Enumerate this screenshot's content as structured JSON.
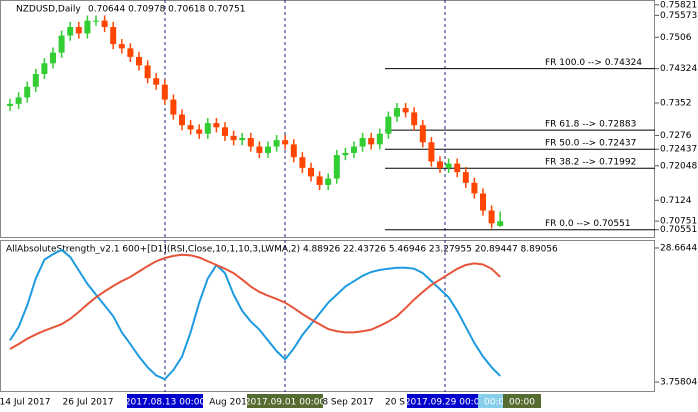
{
  "chart_data": [
    {
      "type": "candlestick",
      "title": "NZDUSD,Daily",
      "header_values": "0.70644 0.70978 0.70618 0.70751",
      "up_color": "#32cd32",
      "down_color": "#ff4500",
      "open": [
        0.7345,
        0.735,
        0.7365,
        0.739,
        0.742,
        0.7445,
        0.747,
        0.751,
        0.753,
        0.7515,
        0.7545,
        0.7545,
        0.753,
        0.749,
        0.748,
        0.746,
        0.744,
        0.741,
        0.7395,
        0.736,
        0.7325,
        0.73,
        0.729,
        0.728,
        0.7305,
        0.7295,
        0.7275,
        0.7265,
        0.727,
        0.725,
        0.7235,
        0.725,
        0.7265,
        0.7255,
        0.7225,
        0.72,
        0.718,
        0.716,
        0.7175,
        0.723,
        0.7235,
        0.725,
        0.727,
        0.7255,
        0.728,
        0.732,
        0.734,
        0.733,
        0.73,
        0.726,
        0.7215,
        0.72,
        0.721,
        0.719,
        0.7165,
        0.714,
        0.71,
        0.7064
      ],
      "high": [
        0.7362,
        0.7377,
        0.7402,
        0.7432,
        0.7457,
        0.7482,
        0.7522,
        0.7542,
        0.7542,
        0.7557,
        0.7557,
        0.7557,
        0.7542,
        0.7502,
        0.7492,
        0.7472,
        0.7452,
        0.7422,
        0.7407,
        0.7372,
        0.7337,
        0.7312,
        0.7302,
        0.7317,
        0.7317,
        0.7307,
        0.7287,
        0.7282,
        0.7282,
        0.7262,
        0.7262,
        0.7277,
        0.7277,
        0.7267,
        0.7237,
        0.7212,
        0.7192,
        0.7187,
        0.7242,
        0.7247,
        0.7262,
        0.7282,
        0.7282,
        0.7292,
        0.7332,
        0.7352,
        0.7352,
        0.7342,
        0.7312,
        0.7272,
        0.7227,
        0.7222,
        0.7222,
        0.7202,
        0.7177,
        0.7152,
        0.7112,
        0.7098
      ],
      "low": [
        0.7333,
        0.7338,
        0.7353,
        0.7378,
        0.7408,
        0.7433,
        0.7458,
        0.7498,
        0.7503,
        0.7503,
        0.7533,
        0.7518,
        0.7478,
        0.7468,
        0.7448,
        0.7428,
        0.7398,
        0.7383,
        0.7348,
        0.7313,
        0.7288,
        0.7278,
        0.7268,
        0.7268,
        0.7283,
        0.7263,
        0.7253,
        0.7253,
        0.7238,
        0.7223,
        0.7223,
        0.7238,
        0.7243,
        0.7213,
        0.7188,
        0.7168,
        0.7148,
        0.7148,
        0.7163,
        0.7218,
        0.7223,
        0.7238,
        0.7243,
        0.7243,
        0.7268,
        0.7308,
        0.7318,
        0.7288,
        0.7248,
        0.7203,
        0.7188,
        0.7188,
        0.7178,
        0.7153,
        0.7128,
        0.7088,
        0.7058,
        0.7062
      ],
      "close": [
        0.735,
        0.7365,
        0.739,
        0.742,
        0.7445,
        0.747,
        0.751,
        0.753,
        0.7515,
        0.7545,
        0.7545,
        0.753,
        0.749,
        0.748,
        0.746,
        0.744,
        0.741,
        0.7395,
        0.736,
        0.7325,
        0.73,
        0.729,
        0.728,
        0.7305,
        0.7295,
        0.7275,
        0.7265,
        0.727,
        0.725,
        0.7235,
        0.725,
        0.7265,
        0.7255,
        0.7225,
        0.72,
        0.718,
        0.716,
        0.7175,
        0.723,
        0.7235,
        0.725,
        0.727,
        0.7255,
        0.728,
        0.732,
        0.734,
        0.733,
        0.73,
        0.726,
        0.7215,
        0.72,
        0.721,
        0.719,
        0.7165,
        0.714,
        0.71,
        0.707,
        0.7075
      ],
      "ylim": [
        0.7038,
        0.7591
      ],
      "yticks": [
        0.75821,
        0.75573,
        0.7506,
        0.74324,
        0.7352,
        0.7276,
        0.72437,
        0.72048,
        0.7124,
        0.70751,
        0.70551
      ],
      "levels": [
        {
          "value": 0.74324,
          "label": "FR   100.0   --> 0.74324"
        },
        {
          "value": 0.72883,
          "label": "FR   61.8   --> 0.72883"
        },
        {
          "value": 0.72437,
          "label": "FR   50.0   --> 0.72437"
        },
        {
          "value": 0.71992,
          "label": "FR   38.2   --> 0.71992"
        },
        {
          "value": 0.70551,
          "label": "FR   0.0   --> 0.70551"
        }
      ],
      "x_labels": [
        "14 Jul 2017",
        "26 Jul 2017",
        "2017.08.13 00:00",
        "Aug 201",
        "2017.09.01 00:00",
        "8 Sep 2017",
        "20 S",
        "2017.09.29 00:00",
        "00:00",
        "00:00"
      ]
    },
    {
      "type": "line",
      "title": "AllAbsoluteStrength_v2.1 600+[D1](RSI,Close,10,1,10,3,LWMA,2) 4.88926 22.43726 5.46946 23.27955 20.89447 8.89056",
      "series": [
        {
          "color": "#1e9be0",
          "values": [
            11.5,
            14,
            18,
            23,
            26.5,
            27.5,
            28.3,
            27,
            24.5,
            22,
            20,
            18,
            16,
            13,
            10.8,
            8.5,
            6.5,
            5,
            4.3,
            6,
            8.5,
            13,
            18.5,
            23,
            25.5,
            24,
            20,
            17,
            15,
            13.5,
            11.5,
            9.5,
            8,
            10,
            12.5,
            14.5,
            16.5,
            18.5,
            20,
            21.5,
            22.5,
            23.5,
            24.2,
            24.6,
            24.8,
            25,
            25,
            24.8,
            24,
            22.5,
            21,
            19.5,
            17,
            14,
            11,
            8.5,
            6.5,
            4.9
          ]
        },
        {
          "color": "#e8543a",
          "values": [
            9.9,
            10.8,
            11.8,
            12.6,
            13.3,
            13.9,
            14.5,
            15.5,
            16.8,
            18.2,
            19.5,
            20.6,
            21.6,
            22.5,
            23.3,
            24.3,
            25.3,
            26.2,
            26.8,
            27.2,
            27.4,
            27.3,
            26.9,
            26.2,
            25.5,
            24.8,
            24,
            22.8,
            21.5,
            20.5,
            19.8,
            19.2,
            18.5,
            17.5,
            16.4,
            15.4,
            14.5,
            13.6,
            13.2,
            13,
            13,
            13.2,
            13.5,
            14.2,
            15,
            16,
            17.5,
            19.1,
            20.5,
            21.8,
            22.8,
            23.8,
            24.8,
            25.5,
            25.8,
            25.6,
            24.8,
            23.3
          ]
        }
      ],
      "ylim": [
        2.1,
        29.96
      ],
      "yticks": [
        28.6644,
        3.75804
      ]
    }
  ]
}
